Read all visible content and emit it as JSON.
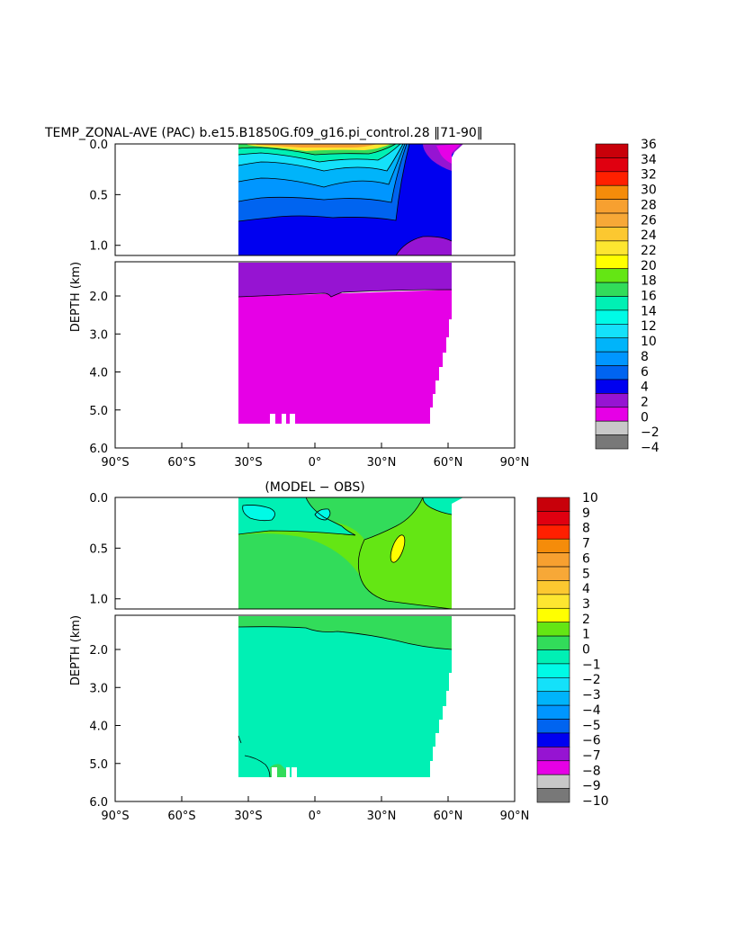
{
  "chart_data": [
    {
      "type": "heatmap",
      "title": "TEMP_ZONAL-AVE (PAC) b.e15.B1850G.f09_g16.pi_control.28 ‖71-90‖",
      "ylabel": "DEPTH (km)",
      "xlabel": "",
      "x_tick_labels": [
        "90°S",
        "60°S",
        "30°S",
        "0°",
        "30°N",
        "60°N",
        "90°N"
      ],
      "xlim": [
        -90,
        90
      ],
      "upper_panel": {
        "ylim": [
          0.0,
          1.1
        ],
        "y_tick_labels": [
          "0.0",
          "0.5",
          "1.0"
        ],
        "y_ticks": [
          0.0,
          0.5,
          1.0
        ]
      },
      "lower_panel": {
        "ylim": [
          1.1,
          6.0
        ],
        "y_tick_labels": [
          "2.0",
          "3.0",
          "4.0",
          "5.0",
          "6.0"
        ],
        "y_ticks": [
          2.0,
          3.0,
          4.0,
          5.0,
          6.0
        ]
      },
      "colorbar": {
        "levels": [
          "36",
          "34",
          "32",
          "30",
          "28",
          "26",
          "24",
          "22",
          "20",
          "18",
          "16",
          "14",
          "12",
          "10",
          "8",
          "6",
          "4",
          "2",
          "0",
          "−2",
          "−4"
        ],
        "colors": [
          "#c8000a",
          "#e00010",
          "#ff2000",
          "#f58c0a",
          "#f7a030",
          "#f7a837",
          "#fcc830",
          "#fde630",
          "#ffff00",
          "#64e614",
          "#32dc5a",
          "#00f0b4",
          "#00fae6",
          "#14e1fa",
          "#00b4fa",
          "#0096ff",
          "#0064f0",
          "#0000f0",
          "#9614d2",
          "#e600e6",
          "#c8c8c8",
          "#787878"
        ]
      }
    },
    {
      "type": "heatmap",
      "title": "(MODEL − OBS)",
      "ylabel": "DEPTH (km)",
      "xlabel": "",
      "x_tick_labels": [
        "90°S",
        "60°S",
        "30°S",
        "0°",
        "30°N",
        "60°N",
        "90°N"
      ],
      "xlim": [
        -90,
        90
      ],
      "upper_panel": {
        "ylim": [
          0.0,
          1.1
        ],
        "y_tick_labels": [
          "0.0",
          "0.5",
          "1.0"
        ],
        "y_ticks": [
          0.0,
          0.5,
          1.0
        ]
      },
      "lower_panel": {
        "ylim": [
          1.1,
          6.0
        ],
        "y_tick_labels": [
          "2.0",
          "3.0",
          "4.0",
          "5.0",
          "6.0"
        ],
        "y_ticks": [
          2.0,
          3.0,
          4.0,
          5.0,
          6.0
        ]
      },
      "colorbar": {
        "levels": [
          "10",
          "9",
          "8",
          "7",
          "6",
          "5",
          "4",
          "3",
          "2",
          "1",
          "0",
          "−1",
          "−2",
          "−3",
          "−4",
          "−5",
          "−6",
          "−7",
          "−8",
          "−9",
          "−10"
        ],
        "colors": [
          "#c8000a",
          "#e00010",
          "#ff2000",
          "#f58c0a",
          "#f7a030",
          "#f7a837",
          "#fcc830",
          "#fde630",
          "#ffff00",
          "#64e614",
          "#32dc5a",
          "#00f0b4",
          "#00fae6",
          "#14e1fa",
          "#00b4fa",
          "#0096ff",
          "#0064f0",
          "#0000f0",
          "#9614d2",
          "#e600e6",
          "#c8c8c8",
          "#787878"
        ]
      }
    }
  ]
}
